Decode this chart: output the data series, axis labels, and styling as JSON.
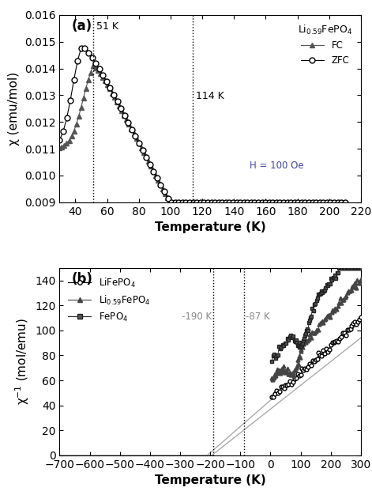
{
  "panel_a": {
    "title": "(a)",
    "xlabel": "Temperature (K)",
    "ylabel": "χ (emu/mol)",
    "xlim": [
      30,
      220
    ],
    "ylim": [
      0.009,
      0.016
    ],
    "xticks": [
      40,
      60,
      80,
      100,
      120,
      140,
      160,
      180,
      200,
      220
    ],
    "yticks": [
      0.009,
      0.01,
      0.011,
      0.012,
      0.013,
      0.014,
      0.015,
      0.016
    ],
    "vlines": [
      51,
      114
    ],
    "vline_labels": [
      "51 K",
      "114 K"
    ],
    "legend_title": "Li$_{0.59}$FePO$_4$",
    "legend_entries": [
      "FC",
      "ZFC"
    ],
    "legend_note": "H = 100 Oe",
    "fc_color": "#555555",
    "zfc_color": "#000000"
  },
  "panel_b": {
    "title": "(b)",
    "xlabel": "Temperature (K)",
    "ylabel": "χ$^{-1}$ (mol/emu)",
    "xlim": [
      -700,
      300
    ],
    "ylim": [
      0,
      150
    ],
    "xticks": [
      -700,
      -600,
      -500,
      -400,
      -300,
      -200,
      -100,
      0,
      100,
      200,
      300
    ],
    "yticks": [
      0,
      20,
      40,
      60,
      80,
      100,
      120,
      140
    ],
    "vlines": [
      -190,
      -87
    ],
    "vline_labels": [
      "-190 K",
      "-87 K"
    ],
    "legend_entries": [
      "LiFePO$_4$",
      "Li$_{0.59}$FePO$_4$",
      "FePO$_4$"
    ]
  }
}
